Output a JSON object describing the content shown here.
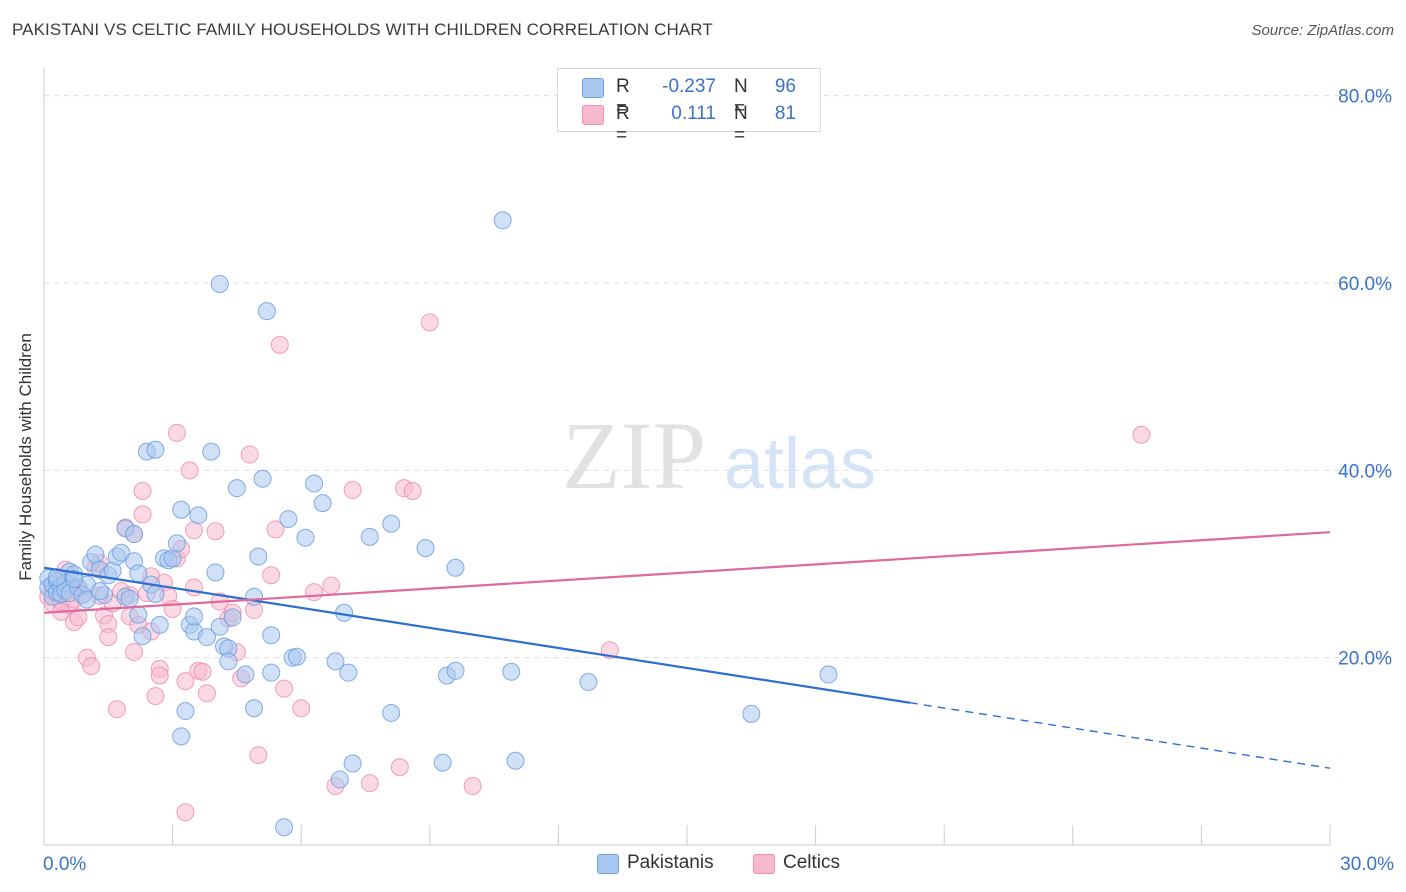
{
  "title": "PAKISTANI VS CELTIC FAMILY HOUSEHOLDS WITH CHILDREN CORRELATION CHART",
  "source": "Source: ZipAtlas.com",
  "watermark": {
    "zip": "ZIP",
    "atlas": "atlas"
  },
  "colors": {
    "blue_fill": "#a9c8f0",
    "blue_stroke": "#6f9fe0",
    "blue_line": "#2f6fd1",
    "pink_fill": "#f6b9cd",
    "pink_stroke": "#ee8fb0",
    "pink_line": "#e0699a",
    "grid": "#dddddd",
    "axis_text": "#3a73c9"
  },
  "legend": {
    "rows": [
      {
        "r_label": "R =",
        "r_value": "-0.237",
        "n_label": "N =",
        "n_value": "96",
        "color": "#a9c8f0"
      },
      {
        "r_label": "R =",
        "r_value": "0.111",
        "n_label": "N =",
        "n_value": "81",
        "color": "#f6b9cd"
      }
    ]
  },
  "bottom_legend": [
    {
      "label": "Pakistanis",
      "color": "#a9c8f0"
    },
    {
      "label": "Celtics",
      "color": "#f6b9cd"
    }
  ],
  "chart_data": {
    "type": "scatter",
    "title": "PAKISTANI VS CELTIC FAMILY HOUSEHOLDS WITH CHILDREN CORRELATION CHART",
    "xlabel": "",
    "ylabel": "Family Households with Children",
    "xlim": [
      0,
      30
    ],
    "ylim": [
      0,
      82
    ],
    "x_ticks": [
      {
        "value": 0,
        "label": "0.0%"
      },
      {
        "value": 30,
        "label": "30.0%"
      }
    ],
    "y_ticks": [
      {
        "value": 20,
        "label": "20.0%"
      },
      {
        "value": 40,
        "label": "40.0%"
      },
      {
        "value": 60,
        "label": "60.0%"
      },
      {
        "value": 80,
        "label": "80.0%"
      }
    ],
    "grid": true,
    "legend_position": "top-center",
    "series": [
      {
        "name": "Pakistanis",
        "color": "#a9c8f0",
        "trend": {
          "x0": 0,
          "y0": 29.6,
          "x1": 30,
          "y1": 8.2,
          "solid_until": 20.2
        },
        "points": [
          [
            0.1,
            27.5
          ],
          [
            0.1,
            28.5
          ],
          [
            0.2,
            26.5
          ],
          [
            0.2,
            27.8
          ],
          [
            0.3,
            28.2
          ],
          [
            0.3,
            27.0
          ],
          [
            0.4,
            27.6
          ],
          [
            0.4,
            26.8
          ],
          [
            0.5,
            28.0
          ],
          [
            0.5,
            27.2
          ],
          [
            0.6,
            29.2
          ],
          [
            0.6,
            26.9
          ],
          [
            0.7,
            28.9
          ],
          [
            0.8,
            27.5
          ],
          [
            0.9,
            26.7
          ],
          [
            1.0,
            27.8
          ],
          [
            1.1,
            30.2
          ],
          [
            1.2,
            31.0
          ],
          [
            1.3,
            29.4
          ],
          [
            1.4,
            26.7
          ],
          [
            1.5,
            28.8
          ],
          [
            1.6,
            29.3
          ],
          [
            1.7,
            30.8
          ],
          [
            1.8,
            31.2
          ],
          [
            1.9,
            26.5
          ],
          [
            2.0,
            26.3
          ],
          [
            2.1,
            30.3
          ],
          [
            2.2,
            29.0
          ],
          [
            1.9,
            33.8
          ],
          [
            2.1,
            33.2
          ],
          [
            2.2,
            24.6
          ],
          [
            2.3,
            22.3
          ],
          [
            2.4,
            42.0
          ],
          [
            2.6,
            42.2
          ],
          [
            2.5,
            27.8
          ],
          [
            2.6,
            26.8
          ],
          [
            2.7,
            23.5
          ],
          [
            2.8,
            30.6
          ],
          [
            2.9,
            30.4
          ],
          [
            3.0,
            30.6
          ],
          [
            3.1,
            32.2
          ],
          [
            3.2,
            35.8
          ],
          [
            3.3,
            14.3
          ],
          [
            3.2,
            11.6
          ],
          [
            3.4,
            23.5
          ],
          [
            3.5,
            22.8
          ],
          [
            3.5,
            24.4
          ],
          [
            3.6,
            35.2
          ],
          [
            3.8,
            22.2
          ],
          [
            3.9,
            42.0
          ],
          [
            4.0,
            29.1
          ],
          [
            4.1,
            23.3
          ],
          [
            4.1,
            59.9
          ],
          [
            4.2,
            21.2
          ],
          [
            4.3,
            21.0
          ],
          [
            4.3,
            19.6
          ],
          [
            4.4,
            24.3
          ],
          [
            4.5,
            38.1
          ],
          [
            4.7,
            18.2
          ],
          [
            4.9,
            26.5
          ],
          [
            4.9,
            14.6
          ],
          [
            5.0,
            30.8
          ],
          [
            5.1,
            39.1
          ],
          [
            5.2,
            57.0
          ],
          [
            5.3,
            18.4
          ],
          [
            5.3,
            22.4
          ],
          [
            5.6,
            1.9
          ],
          [
            5.7,
            34.8
          ],
          [
            5.8,
            20.0
          ],
          [
            5.9,
            20.1
          ],
          [
            6.1,
            32.8
          ],
          [
            6.3,
            38.6
          ],
          [
            6.5,
            36.5
          ],
          [
            6.8,
            19.6
          ],
          [
            6.9,
            7.0
          ],
          [
            7.0,
            24.8
          ],
          [
            7.1,
            18.4
          ],
          [
            7.2,
            8.7
          ],
          [
            7.6,
            32.9
          ],
          [
            8.1,
            14.1
          ],
          [
            8.1,
            34.3
          ],
          [
            8.9,
            31.7
          ],
          [
            9.3,
            8.8
          ],
          [
            9.4,
            18.1
          ],
          [
            9.6,
            18.6
          ],
          [
            9.6,
            29.6
          ],
          [
            10.7,
            66.7
          ],
          [
            11.0,
            9.0
          ],
          [
            10.9,
            18.5
          ],
          [
            12.7,
            17.4
          ],
          [
            16.5,
            14.0
          ],
          [
            18.3,
            18.2
          ],
          [
            0.3,
            28.6
          ],
          [
            0.7,
            28.4
          ],
          [
            1.0,
            26.2
          ],
          [
            1.3,
            27.1
          ]
        ]
      },
      {
        "name": "Celtics",
        "color": "#f6b9cd",
        "trend": {
          "x0": 0,
          "y0": 24.8,
          "x1": 30,
          "y1": 33.4
        },
        "points": [
          [
            0.1,
            26.5
          ],
          [
            0.2,
            27.2
          ],
          [
            0.2,
            25.8
          ],
          [
            0.3,
            26.8
          ],
          [
            0.3,
            28.1
          ],
          [
            0.4,
            26.0
          ],
          [
            0.5,
            29.4
          ],
          [
            0.5,
            26.9
          ],
          [
            0.6,
            25.6
          ],
          [
            0.6,
            27.8
          ],
          [
            0.7,
            26.2
          ],
          [
            0.7,
            23.8
          ],
          [
            0.8,
            24.3
          ],
          [
            0.8,
            27.3
          ],
          [
            0.9,
            26.8
          ],
          [
            1.0,
            20.0
          ],
          [
            1.1,
            19.1
          ],
          [
            1.2,
            29.6
          ],
          [
            1.3,
            30.1
          ],
          [
            1.3,
            26.6
          ],
          [
            1.4,
            24.5
          ],
          [
            1.5,
            23.6
          ],
          [
            1.5,
            22.2
          ],
          [
            1.6,
            25.8
          ],
          [
            1.7,
            14.5
          ],
          [
            1.8,
            27.1
          ],
          [
            1.9,
            33.9
          ],
          [
            2.0,
            26.7
          ],
          [
            2.0,
            24.4
          ],
          [
            2.1,
            33.2
          ],
          [
            2.1,
            20.6
          ],
          [
            2.2,
            23.5
          ],
          [
            2.3,
            37.8
          ],
          [
            2.3,
            35.3
          ],
          [
            2.4,
            26.9
          ],
          [
            2.5,
            22.8
          ],
          [
            2.5,
            28.7
          ],
          [
            2.6,
            15.9
          ],
          [
            2.7,
            18.8
          ],
          [
            2.7,
            18.1
          ],
          [
            2.8,
            28.0
          ],
          [
            2.9,
            26.6
          ],
          [
            3.0,
            25.2
          ],
          [
            3.1,
            30.6
          ],
          [
            3.1,
            44.0
          ],
          [
            3.2,
            31.6
          ],
          [
            3.3,
            3.5
          ],
          [
            3.3,
            17.5
          ],
          [
            3.4,
            40.0
          ],
          [
            3.5,
            33.6
          ],
          [
            3.5,
            27.5
          ],
          [
            3.6,
            18.6
          ],
          [
            3.7,
            18.5
          ],
          [
            3.8,
            16.2
          ],
          [
            4.0,
            33.5
          ],
          [
            4.1,
            26.0
          ],
          [
            4.3,
            24.2
          ],
          [
            4.4,
            24.8
          ],
          [
            4.5,
            20.6
          ],
          [
            4.6,
            17.8
          ],
          [
            4.8,
            41.7
          ],
          [
            4.9,
            25.1
          ],
          [
            5.0,
            9.6
          ],
          [
            5.3,
            28.8
          ],
          [
            5.4,
            33.7
          ],
          [
            5.5,
            53.4
          ],
          [
            5.6,
            16.7
          ],
          [
            6.0,
            14.6
          ],
          [
            6.3,
            27.0
          ],
          [
            6.7,
            27.7
          ],
          [
            6.8,
            6.3
          ],
          [
            7.2,
            37.9
          ],
          [
            7.6,
            6.6
          ],
          [
            8.3,
            8.3
          ],
          [
            8.4,
            38.1
          ],
          [
            8.6,
            37.8
          ],
          [
            9.0,
            55.8
          ],
          [
            10.0,
            6.3
          ],
          [
            13.2,
            20.8
          ],
          [
            25.6,
            43.8
          ],
          [
            0.4,
            24.9
          ]
        ]
      }
    ]
  }
}
